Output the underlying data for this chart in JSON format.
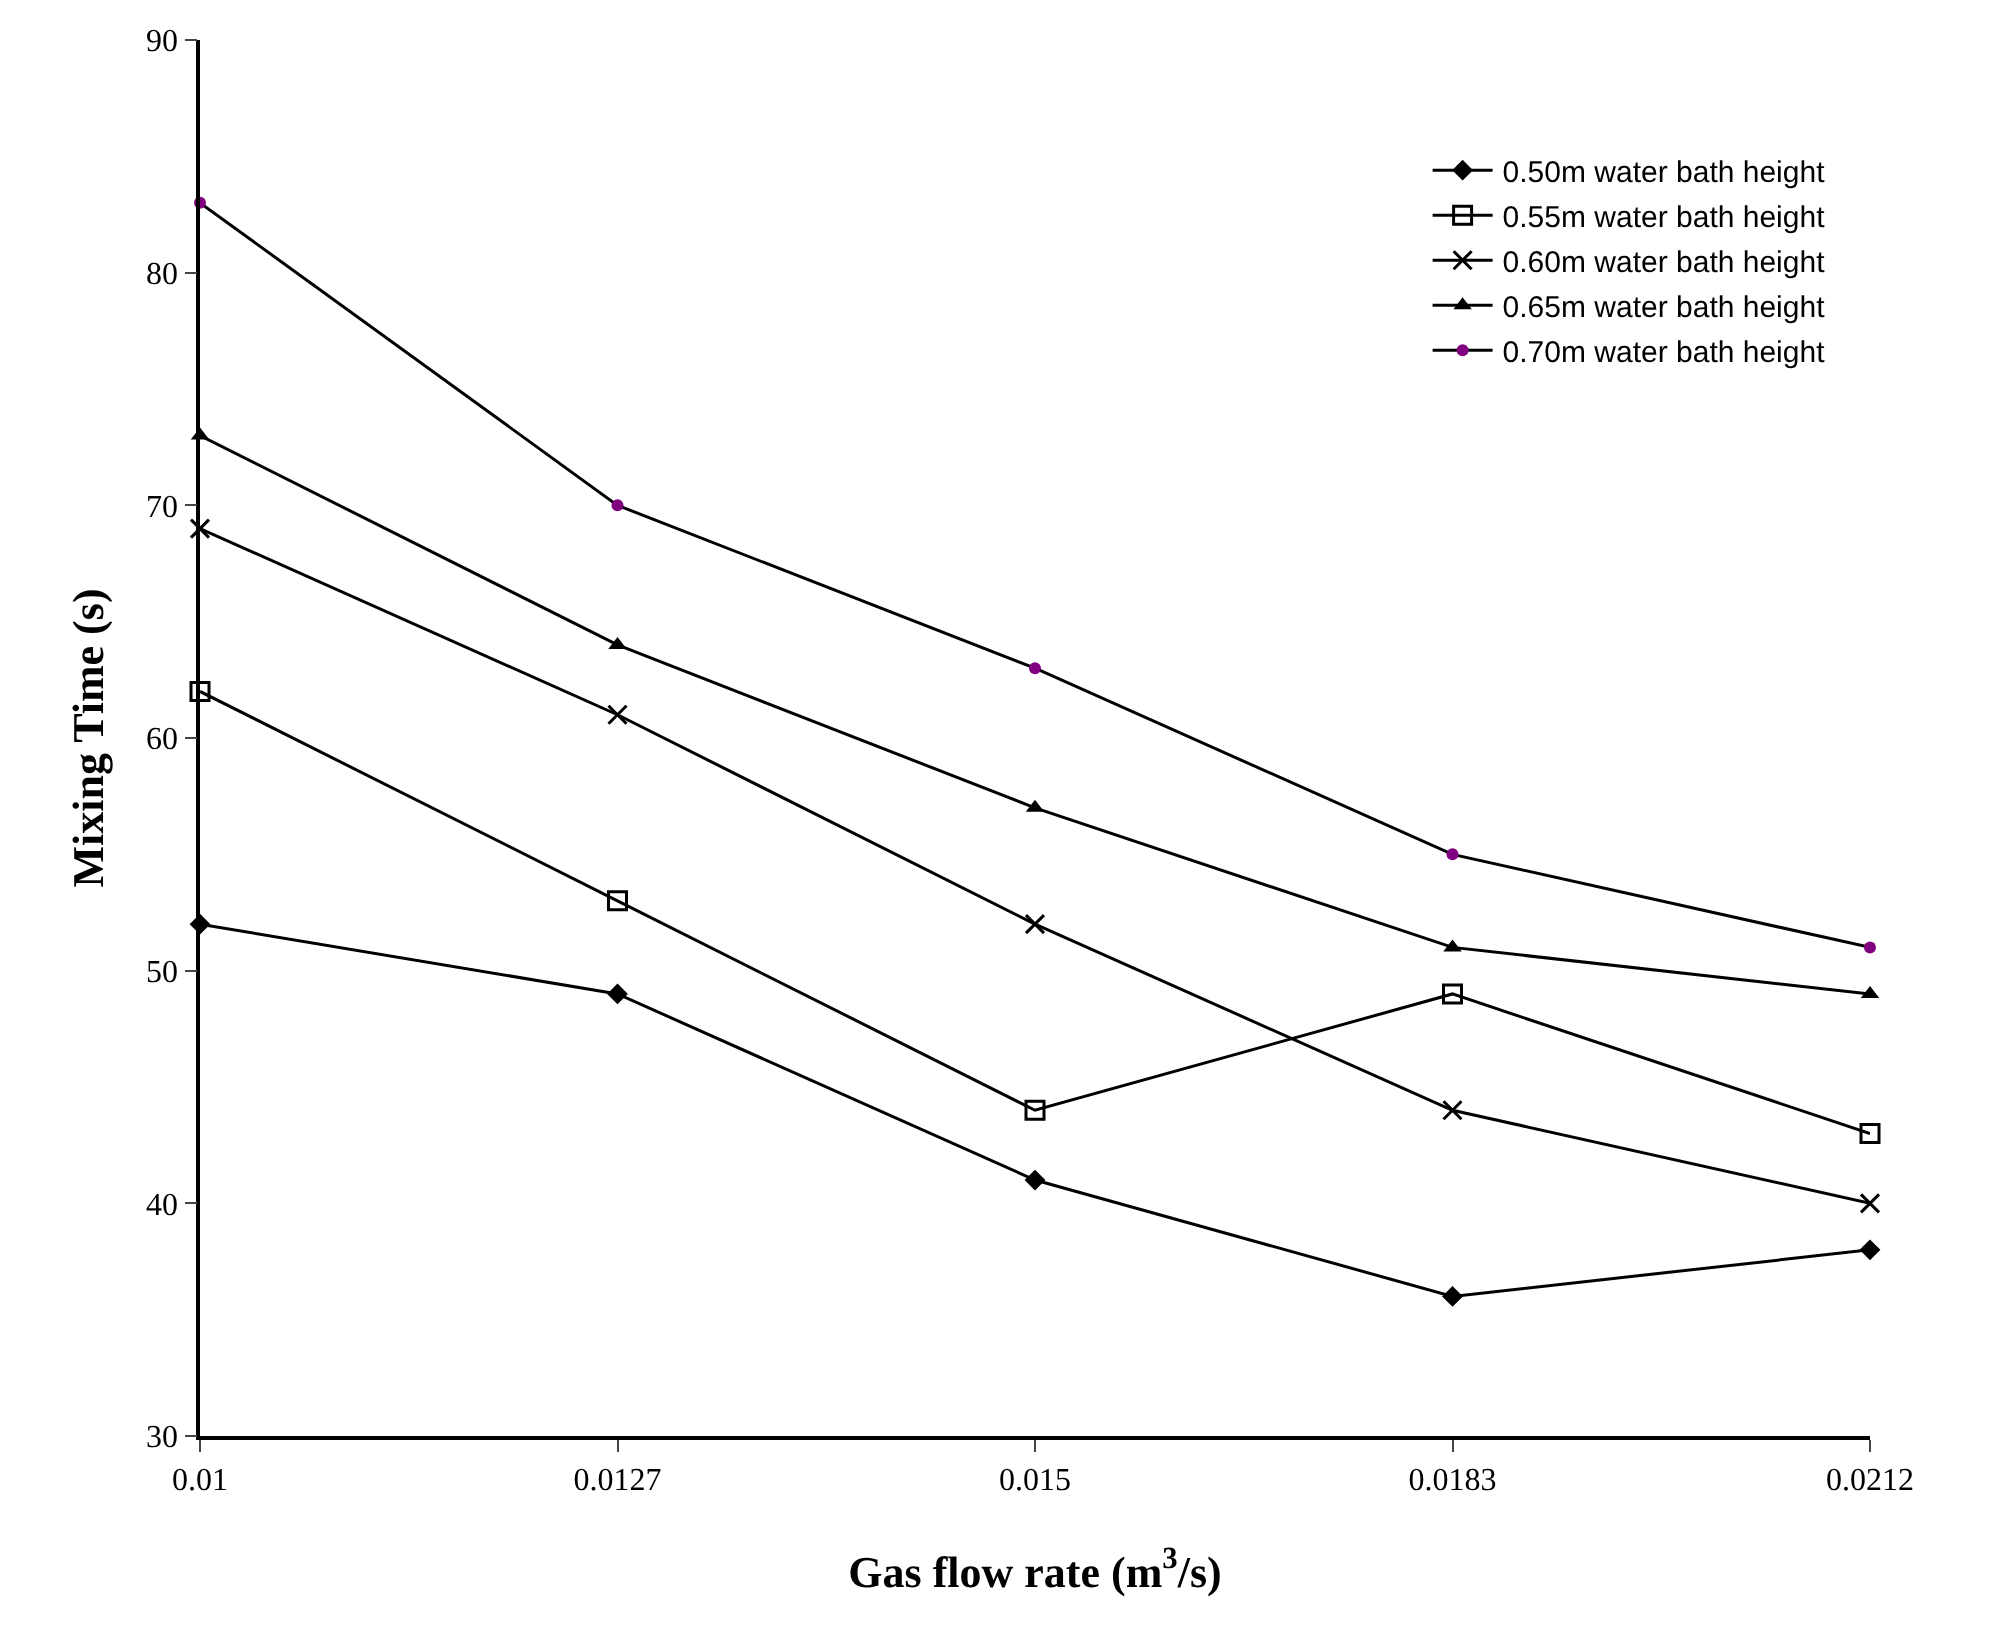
{
  "chart_data": {
    "type": "line",
    "xlabel": "Gas flow rate (m$^{3}$/s)",
    "ylabel": "Mixing Time (s)",
    "categories": [
      "0.01",
      "0.0127",
      "0.015",
      "0.0183",
      "0.0212"
    ],
    "series": [
      {
        "name": "0.50m water bath height",
        "color": "#000000",
        "marker": "diamond",
        "values": [
          52,
          49,
          41,
          36,
          38
        ]
      },
      {
        "name": "0.55m water bath height",
        "color": "#000000",
        "marker": "square",
        "values": [
          62,
          53,
          44,
          49,
          43
        ]
      },
      {
        "name": "0.60m water bath height",
        "color": "#000000",
        "marker": "cross",
        "values": [
          69,
          61,
          52,
          44,
          40
        ]
      },
      {
        "name": "0.65m water bath height",
        "color": "#000000",
        "marker": "triangle",
        "values": [
          73,
          64,
          57,
          51,
          49
        ]
      },
      {
        "name": "0.70m water bath height",
        "color": "#800080",
        "marker": "circle",
        "values": [
          83,
          70,
          63,
          55,
          51
        ]
      }
    ],
    "ylim": [
      30,
      90
    ],
    "yticks": [
      30,
      40,
      50,
      60,
      70,
      80,
      90
    ],
    "legend": "top right",
    "line_style": "solid"
  }
}
